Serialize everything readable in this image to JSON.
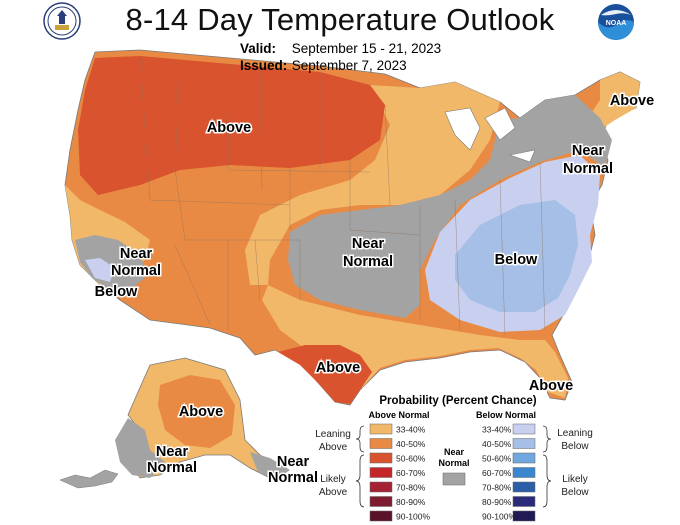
{
  "header": {
    "title": "8-14 Day Temperature Outlook",
    "valid_label": "Valid:",
    "valid_value": "September 15 - 21, 2023",
    "issued_label": "Issued:",
    "issued_value": "September 7, 2023"
  },
  "logos": {
    "left": "commerce-seal-icon",
    "right": "noaa-logo-icon",
    "right_text": "NOAA"
  },
  "map_labels": {
    "above_northwest": "Above",
    "above_northeast": "Above",
    "near_normal_northeast_1": "Near",
    "near_normal_northeast_2": "Normal",
    "near_normal_west_1": "Near",
    "near_normal_west_2": "Normal",
    "below_west": "Below",
    "near_normal_central_1": "Near",
    "near_normal_central_2": "Normal",
    "below_east": "Below",
    "above_texas": "Above",
    "above_florida": "Above",
    "above_alaska": "Above",
    "near_normal_alaska_1": "Near",
    "near_normal_alaska_2": "Normal",
    "near_normal_aleutian_1": "Near",
    "near_normal_aleutian_2": "Normal"
  },
  "legend": {
    "title": "Probability (Percent Chance)",
    "above_header": "Above Normal",
    "below_header": "Below Normal",
    "near_header_1": "Near",
    "near_header_2": "Normal",
    "leaning_above_1": "Leaning",
    "leaning_above_2": "Above",
    "likely_above_1": "Likely",
    "likely_above_2": "Above",
    "leaning_below_1": "Leaning",
    "leaning_below_2": "Below",
    "likely_below_1": "Likely",
    "likely_below_2": "Below",
    "above_bins": [
      {
        "range": "33-40%",
        "color": "#f2b86a"
      },
      {
        "range": "40-50%",
        "color": "#e88a43"
      },
      {
        "range": "50-60%",
        "color": "#d9532e"
      },
      {
        "range": "60-70%",
        "color": "#c3272a"
      },
      {
        "range": "70-80%",
        "color": "#a52234"
      },
      {
        "range": "80-90%",
        "color": "#7d1c31"
      },
      {
        "range": "90-100%",
        "color": "#5a1228"
      }
    ],
    "below_bins": [
      {
        "range": "33-40%",
        "color": "#c9cfee"
      },
      {
        "range": "40-50%",
        "color": "#a5bfe6"
      },
      {
        "range": "50-60%",
        "color": "#6fa7de"
      },
      {
        "range": "60-70%",
        "color": "#3b87cf"
      },
      {
        "range": "70-80%",
        "color": "#2c5ea7"
      },
      {
        "range": "80-90%",
        "color": "#2b2b7c"
      },
      {
        "range": "90-100%",
        "color": "#201a55"
      }
    ],
    "near_color": "#a3a3a3"
  }
}
